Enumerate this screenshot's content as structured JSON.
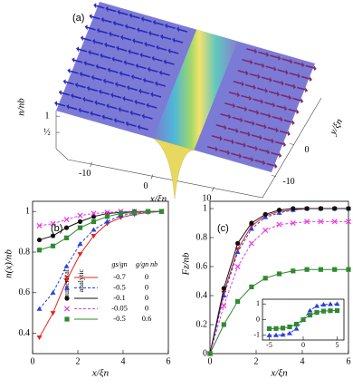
{
  "chart_data": [
    {
      "type": "surface",
      "label": "(a)",
      "xlabel": "x/ξn",
      "ylabel": "y/ξn",
      "zlabel": "n/nb",
      "xlim": [
        -15,
        15
      ],
      "ylim": [
        -15,
        15
      ],
      "zlim": [
        0,
        1.2
      ],
      "xticks": [
        -10,
        0,
        10
      ],
      "yticks": [
        -10,
        0
      ],
      "zticks": [
        {
          "value": 0.5,
          "label": "½"
        },
        1
      ]
    },
    {
      "type": "line",
      "label": "(b)",
      "xlabel": "x/ξn",
      "ylabel": "n(x)/nb",
      "xlim": [
        0,
        6
      ],
      "ylim": [
        0.3,
        1.05
      ],
      "xticks": [
        0,
        2,
        4,
        6
      ],
      "yticks": [
        0.4,
        0.6,
        0.8,
        1
      ],
      "legend_headers": [
        "numerical",
        "analytic",
        "gs/gn",
        "g/gn nb"
      ],
      "x": [
        0.3,
        0.9,
        1.5,
        2.1,
        2.7,
        3.3,
        3.9,
        4.5,
        5.1,
        5.7
      ],
      "series": [
        {
          "name": "-0.7",
          "param": "0",
          "color": "#e8221e",
          "marker": "tri-down",
          "dash": false,
          "values": [
            0.38,
            0.5,
            0.66,
            0.79,
            0.88,
            0.94,
            0.97,
            0.985,
            0.995,
            1.0
          ]
        },
        {
          "name": "-0.5",
          "param": "0",
          "color": "#2a3fe0",
          "marker": "tri-up",
          "dash": true,
          "values": [
            0.52,
            0.6,
            0.73,
            0.84,
            0.91,
            0.95,
            0.98,
            0.99,
            1.0,
            1.0
          ]
        },
        {
          "name": "-0.1",
          "param": "0",
          "color": "#111111",
          "marker": "circle",
          "dash": false,
          "values": [
            0.86,
            0.88,
            0.92,
            0.95,
            0.975,
            0.99,
            0.995,
            1.0,
            1.0,
            1.0
          ]
        },
        {
          "name": "-0.05",
          "param": "0",
          "color": "#e83ae0",
          "marker": "cross",
          "dash": true,
          "values": [
            0.93,
            0.94,
            0.96,
            0.98,
            0.99,
            0.995,
            1.0,
            1.0,
            1.0,
            1.0
          ]
        },
        {
          "name": "-0.5",
          "param": "0.6",
          "color": "#2f8a2f",
          "marker": "square",
          "dash": false,
          "values": [
            0.81,
            0.83,
            0.87,
            0.92,
            0.95,
            0.975,
            0.99,
            0.995,
            1.0,
            1.0
          ]
        }
      ]
    },
    {
      "type": "line",
      "label": "(c)",
      "xlabel": "x/ξn",
      "ylabel": "Fz/nb",
      "xlim": [
        0,
        6
      ],
      "ylim": [
        0,
        1.05
      ],
      "xticks": [
        0,
        2,
        4,
        6
      ],
      "yticks": [
        0,
        0.2,
        0.4,
        0.6,
        0.8,
        1
      ],
      "x": [
        0,
        0.6,
        1.2,
        1.8,
        2.4,
        3,
        3.6,
        4.2,
        4.8,
        5.4,
        6
      ],
      "series": [
        {
          "color": "#e8221e",
          "marker": "tri-down",
          "dash": false,
          "values": [
            0,
            0.42,
            0.72,
            0.88,
            0.95,
            0.98,
            0.99,
            1.0,
            1.0,
            1.0,
            1.0
          ]
        },
        {
          "color": "#2a3fe0",
          "marker": "tri-up",
          "dash": true,
          "values": [
            0,
            0.4,
            0.7,
            0.86,
            0.94,
            0.97,
            0.99,
            1.0,
            1.0,
            1.0,
            1.0
          ]
        },
        {
          "color": "#111111",
          "marker": "circle",
          "dash": false,
          "values": [
            0,
            0.45,
            0.76,
            0.9,
            0.96,
            0.99,
            1.0,
            1.0,
            1.0,
            1.0,
            1.0
          ]
        },
        {
          "color": "#e83ae0",
          "marker": "cross",
          "dash": true,
          "values": [
            0,
            0.33,
            0.6,
            0.76,
            0.85,
            0.89,
            0.9,
            0.91,
            0.91,
            0.91,
            0.91
          ]
        },
        {
          "color": "#2f8a2f",
          "marker": "square",
          "dash": false,
          "values": [
            0,
            0.2,
            0.36,
            0.46,
            0.52,
            0.55,
            0.57,
            0.58,
            0.58,
            0.58,
            0.58
          ]
        }
      ],
      "inset": {
        "xlim": [
          -6,
          6
        ],
        "ylim": [
          -1.3,
          1.3
        ],
        "xticks": [
          -5,
          0,
          5
        ],
        "yticks": [
          -1,
          0,
          1
        ],
        "x": [
          -5,
          -4,
          -3,
          -2,
          -1,
          0,
          1,
          2,
          3,
          4,
          5
        ],
        "series": [
          {
            "color": "#2a3fe0",
            "marker": "tri-up",
            "dash": true,
            "values": [
              -0.998,
              -0.99,
              -0.96,
              -0.87,
              -0.58,
              0,
              0.58,
              0.87,
              0.96,
              0.99,
              0.998
            ]
          },
          {
            "color": "#2f8a2f",
            "marker": "square",
            "dash": false,
            "values": [
              -0.575,
              -0.567,
              -0.54,
              -0.46,
              -0.29,
              0,
              0.29,
              0.46,
              0.54,
              0.567,
              0.575
            ]
          }
        ]
      }
    }
  ]
}
